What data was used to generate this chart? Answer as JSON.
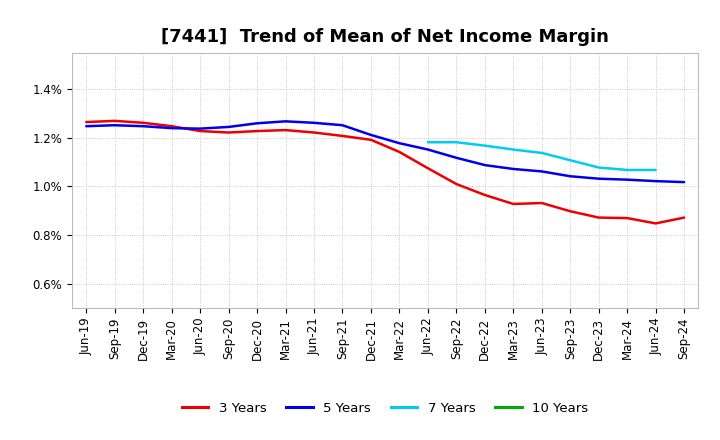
{
  "title": "[7441]  Trend of Mean of Net Income Margin",
  "x_labels": [
    "Jun-19",
    "Sep-19",
    "Dec-19",
    "Mar-20",
    "Jun-20",
    "Sep-20",
    "Dec-20",
    "Mar-21",
    "Jun-21",
    "Sep-21",
    "Dec-21",
    "Mar-22",
    "Jun-22",
    "Sep-22",
    "Dec-22",
    "Mar-23",
    "Jun-23",
    "Sep-23",
    "Dec-23",
    "Mar-24",
    "Jun-24",
    "Sep-24"
  ],
  "ylim": [
    0.005,
    0.0155
  ],
  "yticks": [
    0.006,
    0.008,
    0.01,
    0.012,
    0.014
  ],
  "ytick_labels": [
    "0.6%",
    "0.8%",
    "1.0%",
    "1.2%",
    "1.4%"
  ],
  "series": {
    "3 Years": {
      "color": "#EE0000",
      "linewidth": 1.8,
      "data": [
        0.01265,
        0.0127,
        0.01262,
        0.01248,
        0.01228,
        0.01222,
        0.01228,
        0.01232,
        0.01222,
        0.01208,
        0.01192,
        0.01142,
        0.01075,
        0.0101,
        0.00965,
        0.00928,
        0.00932,
        0.00898,
        0.00872,
        0.0087,
        0.00848,
        0.00872
      ]
    },
    "5 Years": {
      "color": "#0000EE",
      "linewidth": 1.8,
      "data": [
        0.01248,
        0.01252,
        0.01248,
        0.0124,
        0.01238,
        0.01245,
        0.0126,
        0.01268,
        0.01262,
        0.01252,
        0.01212,
        0.01178,
        0.01152,
        0.01118,
        0.01088,
        0.01072,
        0.01062,
        0.01042,
        0.01032,
        0.01028,
        0.01022,
        0.01018
      ]
    },
    "7 Years": {
      "color": "#00CCEE",
      "linewidth": 1.8,
      "data": [
        null,
        null,
        null,
        null,
        null,
        null,
        null,
        null,
        null,
        null,
        null,
        null,
        0.01182,
        0.01182,
        0.01168,
        0.01152,
        0.01138,
        0.01108,
        0.01078,
        0.01068,
        0.01068,
        null
      ]
    },
    "10 Years": {
      "color": "#00AA00",
      "linewidth": 1.8,
      "data": [
        null,
        null,
        null,
        null,
        null,
        null,
        null,
        null,
        null,
        null,
        null,
        null,
        null,
        null,
        null,
        null,
        null,
        null,
        null,
        null,
        null,
        null
      ]
    }
  },
  "legend_labels": [
    "3 Years",
    "5 Years",
    "7 Years",
    "10 Years"
  ],
  "legend_colors": [
    "#EE0000",
    "#0000EE",
    "#00CCEE",
    "#00AA00"
  ],
  "grid_color": "#AAAAAA",
  "grid_linestyle": ":",
  "background_color": "#FFFFFF",
  "plot_bg_color": "#FFFFFF",
  "title_fontsize": 13,
  "tick_fontsize": 8.5
}
